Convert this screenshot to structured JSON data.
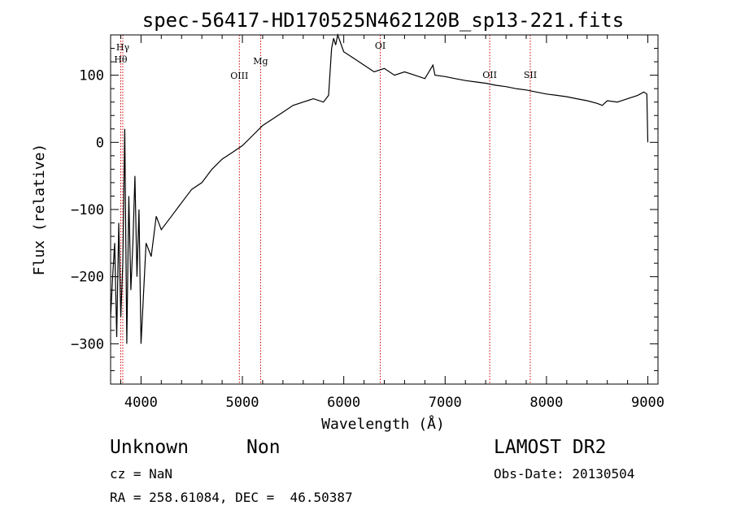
{
  "chart_data": {
    "type": "line",
    "title": "spec-56417-HD170525N462120B_sp13-221.fits",
    "xlabel": "Wavelength (Å)",
    "ylabel": "Flux (relative)",
    "xlim": [
      3700,
      9100
    ],
    "ylim": [
      -360,
      160
    ],
    "x_ticks": [
      4000,
      5000,
      6000,
      7000,
      8000,
      9000
    ],
    "y_ticks": [
      -300,
      -200,
      -100,
      0,
      100
    ],
    "grid": false,
    "line_color": "#000000",
    "marker_color": "#cc0000",
    "series": [
      {
        "x": [
          3700,
          3720,
          3740,
          3760,
          3780,
          3800,
          3820,
          3840,
          3860,
          3880,
          3900,
          3920,
          3940,
          3960,
          3980,
          4000,
          4050,
          4100,
          4150,
          4200,
          4300,
          4400,
          4500,
          4600,
          4700,
          4800,
          4900,
          5000,
          5100,
          5200,
          5300,
          5400,
          5500,
          5600,
          5700,
          5800,
          5850,
          5880,
          5900,
          5920,
          5940,
          6000,
          6100,
          6200,
          6300,
          6400,
          6500,
          6600,
          6700,
          6800,
          6880,
          6900,
          7000,
          7100,
          7200,
          7300,
          7400,
          7500,
          7600,
          7700,
          7800,
          7900,
          8000,
          8100,
          8200,
          8300,
          8400,
          8500,
          8550,
          8600,
          8700,
          8800,
          8900,
          8960,
          8990,
          9000
        ],
        "y": [
          -260,
          -200,
          -150,
          -290,
          -120,
          -260,
          -180,
          20,
          -300,
          -80,
          -220,
          -150,
          -50,
          -200,
          -100,
          -300,
          -150,
          -170,
          -110,
          -130,
          -110,
          -90,
          -70,
          -60,
          -40,
          -25,
          -15,
          -5,
          10,
          25,
          35,
          45,
          55,
          60,
          65,
          60,
          70,
          140,
          155,
          145,
          160,
          135,
          125,
          115,
          105,
          110,
          100,
          105,
          100,
          95,
          115,
          100,
          98,
          95,
          92,
          90,
          88,
          85,
          83,
          80,
          78,
          75,
          72,
          70,
          68,
          65,
          62,
          58,
          55,
          62,
          60,
          65,
          70,
          75,
          72,
          0
        ]
      }
    ],
    "markers": [
      {
        "label": "Hγ",
        "x": 3820
      },
      {
        "label": "Hθ",
        "x": 3800
      },
      {
        "label": "OIII",
        "x": 4970
      },
      {
        "label": "Mg",
        "x": 5180
      },
      {
        "label": "OI",
        "x": 6360
      },
      {
        "label": "OII",
        "x": 7440
      },
      {
        "label": "SII",
        "x": 7840
      }
    ]
  },
  "info": {
    "name": "Unknown",
    "type": "Non",
    "survey": "LAMOST DR2",
    "cz": "cz = NaN",
    "obs_date": "Obs-Date: 20130504",
    "coords": "RA = 258.61084, DEC =  46.50387"
  }
}
